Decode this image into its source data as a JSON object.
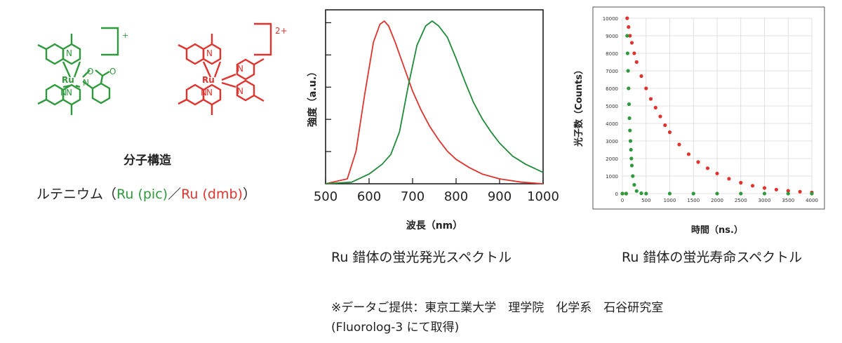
{
  "molecules": {
    "complex1": {
      "metal": "Ru",
      "charge": "+",
      "ligand_atoms": [
        "N",
        "N",
        "N",
        "N",
        "N",
        "O",
        "O"
      ]
    },
    "complex2": {
      "metal": "Ru",
      "charge": "2+",
      "ligand_atoms": [
        "N",
        "N",
        "N",
        "N",
        "N",
        "N"
      ]
    },
    "caption": "分子構造",
    "subtitle_prefix": "ルテニウム（",
    "subtitle_green": "Ru (pic)",
    "subtitle_sep": "／",
    "subtitle_red": "Ru (dmb)",
    "subtitle_suffix": "）",
    "colors": {
      "green": "#2e9a3c",
      "red": "#e0332d"
    }
  },
  "chart_data": [
    {
      "type": "line",
      "title": "Ru 錯体の蛍光発光スペクトル",
      "xlabel": "波長（nm）",
      "ylabel": "強度（a.u.）",
      "xlim": [
        500,
        1000
      ],
      "ylim": [
        0,
        1
      ],
      "xticks": [
        "500",
        "600",
        "700",
        "800",
        "900",
        "1000"
      ],
      "series": [
        {
          "color": "#e0332d",
          "x": [
            500,
            550,
            570,
            590,
            610,
            625,
            635,
            645,
            660,
            680,
            700,
            720,
            740,
            760,
            780,
            800,
            830,
            860,
            900,
            950,
            1000
          ],
          "values": [
            0,
            0.03,
            0.2,
            0.55,
            0.87,
            0.98,
            1.0,
            0.97,
            0.87,
            0.72,
            0.57,
            0.45,
            0.35,
            0.27,
            0.2,
            0.15,
            0.1,
            0.06,
            0.03,
            0.01,
            0
          ]
        },
        {
          "color": "#1f8a3a",
          "x": [
            500,
            560,
            600,
            630,
            650,
            670,
            690,
            710,
            730,
            745,
            760,
            780,
            800,
            820,
            840,
            860,
            880,
            900,
            930,
            960,
            1000
          ],
          "values": [
            0,
            0.01,
            0.06,
            0.12,
            0.18,
            0.32,
            0.6,
            0.85,
            0.97,
            1.0,
            0.97,
            0.9,
            0.77,
            0.63,
            0.5,
            0.4,
            0.32,
            0.25,
            0.17,
            0.12,
            0.07
          ]
        }
      ]
    },
    {
      "type": "scatter",
      "title": "Ru 錯体の蛍光寿命スペクトル",
      "xlabel": "時間（ns.）",
      "ylabel": "光子数（Counts）",
      "xlim": [
        0,
        4000
      ],
      "ylim": [
        0,
        10000
      ],
      "xticks": [
        "0",
        "500",
        "1000",
        "1500",
        "2000",
        "2500",
        "3000",
        "3500",
        "4000"
      ],
      "yticks": [
        "0",
        "1000",
        "2000",
        "3000",
        "4000",
        "5000",
        "6000",
        "7000",
        "8000",
        "9000",
        "10000"
      ],
      "grid": true,
      "series": [
        {
          "color": "#e0332d",
          "x": [
            0,
            80,
            100,
            130,
            160,
            200,
            250,
            300,
            400,
            500,
            600,
            700,
            800,
            900,
            1000,
            1200,
            1400,
            1600,
            1800,
            2000,
            2250,
            2500,
            2750,
            3000,
            3250,
            3500,
            3750,
            4000
          ],
          "values": [
            0,
            0,
            10000,
            9500,
            9000,
            8600,
            8000,
            7500,
            6700,
            6000,
            5400,
            4900,
            4400,
            3900,
            3500,
            2800,
            2250,
            1800,
            1450,
            1150,
            850,
            620,
            450,
            320,
            230,
            160,
            110,
            70
          ]
        },
        {
          "color": "#2e9a3c",
          "x": [
            0,
            80,
            100,
            110,
            120,
            130,
            140,
            150,
            160,
            170,
            180,
            190,
            200,
            220,
            250,
            300,
            400,
            500,
            1000,
            1500,
            2000,
            2500,
            3000,
            3500,
            4000
          ],
          "values": [
            0,
            0,
            9000,
            8000,
            7000,
            6000,
            5100,
            4300,
            3600,
            3000,
            2500,
            2000,
            1600,
            1000,
            500,
            150,
            20,
            0,
            0,
            0,
            0,
            0,
            0,
            0,
            0
          ]
        }
      ]
    }
  ],
  "footer": {
    "credit": "※データご提供：東京工業大学　理学院　化学系　石谷研究室",
    "instrument": "(Fluorolog-3 にて取得)"
  }
}
